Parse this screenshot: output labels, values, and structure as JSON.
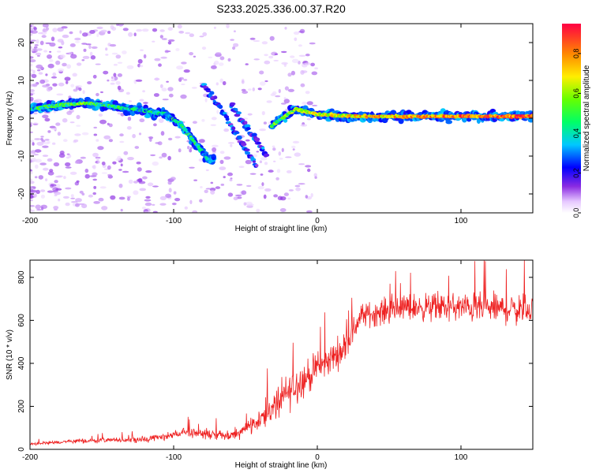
{
  "title": "S233.2025.336.00.37.R20",
  "chart_data": [
    {
      "type": "heatmap",
      "name": "spectrogram",
      "xlabel": "Height of straight line (km)",
      "ylabel": "Frequency (Hz)",
      "xlim": [
        -200,
        150
      ],
      "ylim": [
        -25,
        25
      ],
      "xticks": [
        -200,
        -100,
        0,
        100
      ],
      "yticks": [
        -20,
        -10,
        0,
        10,
        20
      ],
      "colorbar": {
        "label": "Normalized spectral amplitude",
        "range": [
          0,
          0.95
        ],
        "ticks": [
          0.0,
          0.2,
          0.4,
          0.6,
          0.8
        ],
        "colormap": "purple-blue-cyan-green-yellow-orange-red"
      },
      "ridge": [
        {
          "x": -200,
          "y": 2.5,
          "a": 0.35
        },
        {
          "x": -180,
          "y": 3.5,
          "a": 0.4
        },
        {
          "x": -160,
          "y": 4.0,
          "a": 0.45
        },
        {
          "x": -140,
          "y": 3.0,
          "a": 0.35
        },
        {
          "x": -120,
          "y": 2.0,
          "a": 0.3
        },
        {
          "x": -105,
          "y": 1.0,
          "a": 0.3
        },
        {
          "x": -95,
          "y": -1.5,
          "a": 0.35
        },
        {
          "x": -85,
          "y": -6.5,
          "a": 0.35
        },
        {
          "x": -75,
          "y": -11.5,
          "a": 0.3
        },
        {
          "x": -30,
          "y": -1.5,
          "a": 0.45
        },
        {
          "x": -15,
          "y": 2.5,
          "a": 0.5
        },
        {
          "x": 0,
          "y": 1.0,
          "a": 0.55
        },
        {
          "x": 30,
          "y": 0.5,
          "a": 0.65
        },
        {
          "x": 60,
          "y": 0.5,
          "a": 0.7
        },
        {
          "x": 100,
          "y": 0.5,
          "a": 0.75
        },
        {
          "x": 150,
          "y": 0.5,
          "a": 0.8
        }
      ],
      "secondary_ridges": [
        [
          {
            "x": -80,
            "y": 9.0
          },
          {
            "x": -70,
            "y": 4.0
          },
          {
            "x": -60,
            "y": -2.0
          },
          {
            "x": -50,
            "y": -8.0
          },
          {
            "x": -42,
            "y": -12.5
          }
        ],
        [
          {
            "x": -60,
            "y": 3.5
          },
          {
            "x": -50,
            "y": -2.0
          },
          {
            "x": -40,
            "y": -7.0
          },
          {
            "x": -35,
            "y": -10.0
          }
        ]
      ]
    },
    {
      "type": "line",
      "name": "snr",
      "xlabel": "Height of straight line (km)",
      "ylabel": "SNR (10 * v/v)",
      "xlim": [
        -200,
        150
      ],
      "ylim": [
        0,
        880
      ],
      "xticks": [
        -200,
        -100,
        0,
        100
      ],
      "yticks": [
        0,
        200,
        400,
        600,
        800
      ],
      "color": "#ee2222",
      "series": [
        {
          "name": "SNR",
          "envelope": [
            {
              "x": -200,
              "mean": 25,
              "spread": 15
            },
            {
              "x": -160,
              "mean": 40,
              "spread": 25
            },
            {
              "x": -120,
              "mean": 45,
              "spread": 30
            },
            {
              "x": -90,
              "mean": 80,
              "spread": 55
            },
            {
              "x": -60,
              "mean": 60,
              "spread": 50
            },
            {
              "x": -40,
              "mean": 140,
              "spread": 110
            },
            {
              "x": -25,
              "mean": 230,
              "spread": 200
            },
            {
              "x": -15,
              "mean": 300,
              "spread": 200
            },
            {
              "x": 0,
              "mean": 370,
              "spread": 160
            },
            {
              "x": 20,
              "mean": 480,
              "spread": 160
            },
            {
              "x": 30,
              "mean": 620,
              "spread": 130
            },
            {
              "x": 60,
              "mean": 660,
              "spread": 140
            },
            {
              "x": 100,
              "mean": 660,
              "spread": 150
            },
            {
              "x": 150,
              "mean": 650,
              "spread": 170
            }
          ]
        }
      ]
    }
  ]
}
